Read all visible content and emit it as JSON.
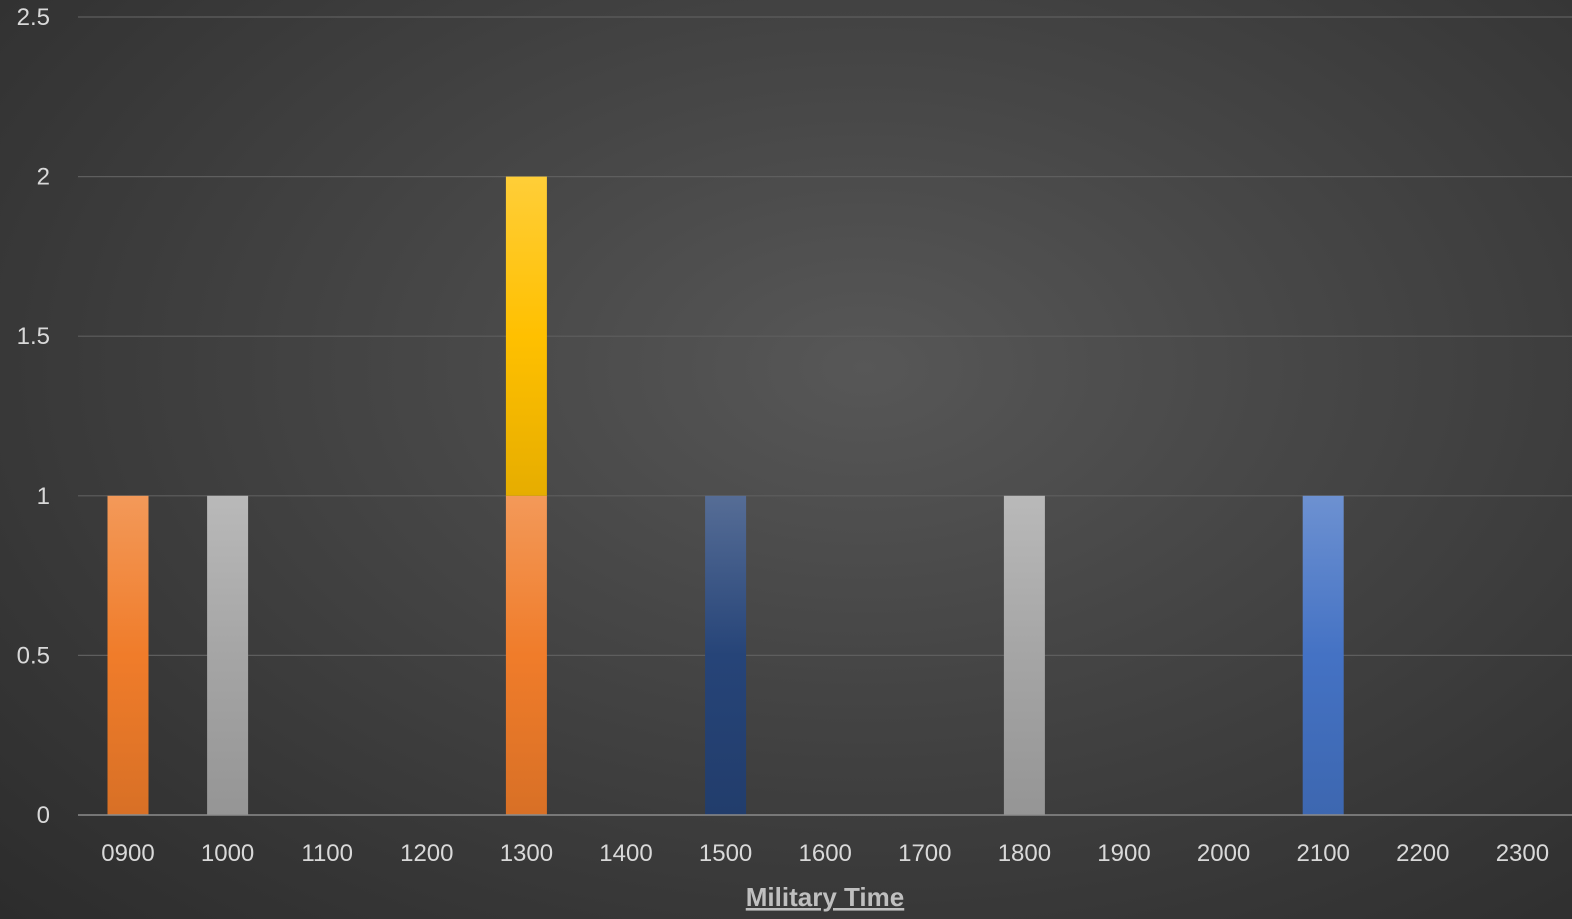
{
  "chart_data": {
    "type": "bar",
    "stacked": true,
    "title": "",
    "xlabel": "Military Time",
    "ylabel": "",
    "categories": [
      "0900",
      "1000",
      "1100",
      "1200",
      "1300",
      "1400",
      "1500",
      "1600",
      "1700",
      "1800",
      "1900",
      "2000",
      "2100",
      "2200",
      "2300"
    ],
    "ylim": [
      0,
      2.5
    ],
    "yticks": [
      "0",
      "0.5",
      "1",
      "1.5",
      "2",
      "2.5"
    ],
    "grid": true,
    "legend": "none",
    "series": [
      {
        "values": [
          1,
          0,
          0,
          0,
          1,
          0,
          0,
          0,
          0,
          0,
          0,
          0,
          0,
          0,
          0
        ],
        "color": "#f07c2a"
      },
      {
        "values": [
          0,
          1,
          0,
          0,
          0,
          0,
          0,
          0,
          0,
          1,
          0,
          0,
          0,
          0,
          0
        ],
        "color": "#a5a5a5"
      },
      {
        "values": [
          0,
          0,
          0,
          0,
          1,
          0,
          0,
          0,
          0,
          0,
          0,
          0,
          0,
          0,
          0
        ],
        "color": "#ffc000"
      },
      {
        "values": [
          0,
          0,
          0,
          0,
          0,
          0,
          1,
          0,
          0,
          0,
          0,
          0,
          0,
          0,
          0
        ],
        "color": "#264478"
      },
      {
        "values": [
          0,
          0,
          0,
          0,
          0,
          0,
          0,
          0,
          0,
          0,
          0,
          0,
          1,
          0,
          0
        ],
        "color": "#4472c4"
      }
    ]
  }
}
